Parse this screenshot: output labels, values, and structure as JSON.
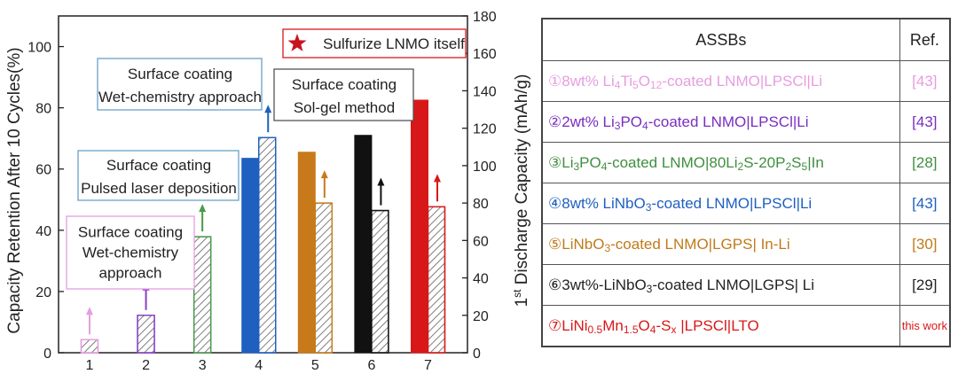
{
  "chart_data": {
    "type": "bar",
    "categories": [
      "1",
      "2",
      "3",
      "4",
      "5",
      "6",
      "7"
    ],
    "series": [
      {
        "values": [
          null,
          null,
          null,
          63.5,
          65.5,
          71,
          82.5
        ]
      },
      {
        "values": [
          7,
          20,
          62,
          115,
          80,
          76,
          78
        ]
      }
    ],
    "colors": [
      "#e59ee0",
      "#8a3fc8",
      "#4a9a4a",
      "#1f5fbf",
      "#c87a1a",
      "#111111",
      "#d81818"
    ],
    "ylabel": "Capacity Retention After 10 Cycles(%)",
    "ylabel_right": "1st Discharge Capacity (mAh/g)",
    "ylabel_right_sup": "st",
    "ylabel_right_base": "1",
    "ylabel_right_rest": " Discharge Capacity (mAh/g)",
    "ylim": [
      0,
      110
    ],
    "ylim_right": [
      0,
      180
    ],
    "yticks": [
      0,
      20,
      40,
      60,
      80,
      100
    ],
    "yticks_right": [
      0,
      20,
      40,
      60,
      80,
      100,
      120,
      140,
      160,
      180
    ],
    "grid": false,
    "annotations": [
      {
        "lines": [
          "Surface coating",
          "Wet-chemistry",
          "approach"
        ],
        "border": "#e59ee0"
      },
      {
        "lines": [
          "Surface coating",
          "Pulsed laser  deposition"
        ],
        "border": "#6aa0c8"
      },
      {
        "lines": [
          "Surface coating",
          "Wet-chemistry  approach"
        ],
        "border": "#6aa0c8"
      },
      {
        "lines": [
          "Surface coating",
          "Sol-gel method"
        ],
        "border": "#555555"
      },
      {
        "lines": [
          "Sulfurize LNMO itself"
        ],
        "border": "#d81818",
        "marker": "star"
      }
    ]
  },
  "table": {
    "header": {
      "col1": "ASSBs",
      "col2": "Ref."
    },
    "rows": [
      {
        "num": "①",
        "parts": [
          "8wt% Li",
          "4",
          "Ti",
          "5",
          "O",
          "12",
          "-coated LNMO|LPSCl|Li"
        ],
        "ref": "[43]",
        "color": "#e59ee0"
      },
      {
        "num": "②",
        "parts": [
          "2wt% Li",
          "3",
          "PO",
          "4",
          "-coated LNMO|LPSCl|Li"
        ],
        "ref": "[43]",
        "color": "#7a2ec0"
      },
      {
        "num": "③",
        "parts": [
          "Li",
          "3",
          "PO",
          "4",
          "-coated LNMO|80Li",
          "2",
          "S-20P",
          "2",
          "S",
          "5",
          "|In"
        ],
        "ref": "[28]",
        "color": "#3f8f3f"
      },
      {
        "num": "④",
        "parts": [
          "8wt% LiNbO",
          "3",
          "-coated LNMO|LPSCl|Li"
        ],
        "ref": "[43]",
        "color": "#1f5fbf"
      },
      {
        "num": "⑤",
        "parts": [
          "LiNbO",
          "3",
          "-coated LNMO|LGPS| In-Li"
        ],
        "ref": "[30]",
        "color": "#c07a1a"
      },
      {
        "num": "⑥",
        "parts": [
          "3wt%-LiNbO",
          "3",
          "-coated LNMO|LGPS| Li"
        ],
        "ref": "[29]",
        "color": "#222222"
      },
      {
        "num": "⑦",
        "parts": [
          "LiNi",
          "0.5",
          "Mn",
          "1.5",
          "O",
          "4",
          "-S",
          "x",
          " |LPSCl|LTO"
        ],
        "ref": "this work",
        "color": "#d81818"
      }
    ]
  }
}
